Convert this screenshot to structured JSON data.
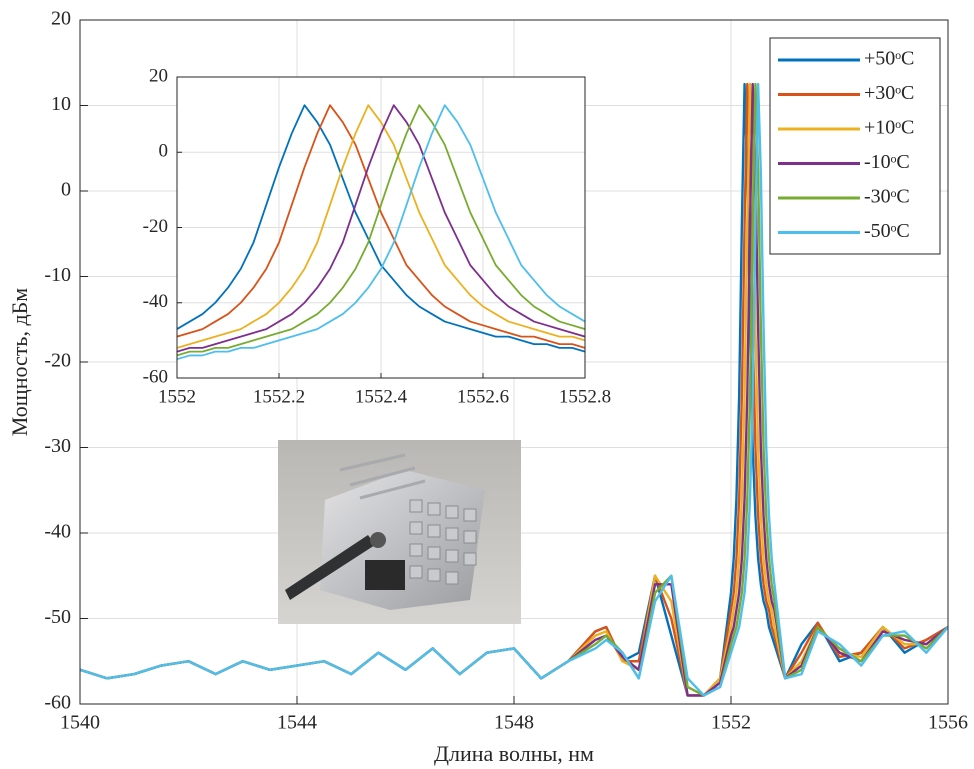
{
  "chart_data": [
    {
      "type": "line",
      "xlabel": "Длина волны, нм",
      "ylabel": "Мощность, дБм",
      "xlim": [
        1540,
        1556
      ],
      "ylim": [
        -60,
        20
      ],
      "xticks": [
        1540,
        1544,
        1548,
        1552,
        1556
      ],
      "yticks": [
        -60,
        -50,
        -40,
        -30,
        -20,
        -10,
        0,
        10,
        20
      ],
      "grid": true,
      "legend": "upper right",
      "x": [
        1540,
        1540.5,
        1541,
        1541.5,
        1542,
        1542.5,
        1543,
        1543.5,
        1544,
        1544.5,
        1545,
        1545.5,
        1546,
        1546.5,
        1547,
        1547.5,
        1548,
        1548.5,
        1549,
        1549.5,
        1549.7,
        1550,
        1550.3,
        1550.6,
        1550.9,
        1551.2,
        1551.5,
        1551.8,
        1552,
        1552.05,
        1552.1,
        1552.15,
        1552.2,
        1552.25,
        1552.3,
        1552.35,
        1552.4,
        1552.45,
        1552.5,
        1552.55,
        1552.6,
        1552.65,
        1552.7,
        1552.75,
        1552.8,
        1553,
        1553.3,
        1553.6,
        1554,
        1554.4,
        1554.8,
        1555.2,
        1555.6,
        1556
      ],
      "series": [
        {
          "name": "+50ᵒC",
          "color": "#0072BD",
          "values": [
            -56,
            -57,
            -56.5,
            -55.5,
            -55,
            -56.5,
            -55,
            -56,
            -55.5,
            -55,
            -56.5,
            -54,
            -56,
            -53.5,
            -56.5,
            -54,
            -53.5,
            -57,
            -55,
            -51.5,
            -51,
            -55,
            -54,
            -45,
            -52,
            -59,
            -59,
            -57,
            -47,
            -43,
            -36,
            -24,
            -4,
            12.5,
            2,
            -16,
            -30,
            -38,
            -43,
            -46,
            -48,
            -49,
            -51,
            -52,
            -53,
            -57,
            -53,
            -50.5,
            -55,
            -54,
            -51,
            -54,
            -52.5,
            -51
          ]
        },
        {
          "name": "+30ᵒC",
          "color": "#D95319",
          "values": [
            -56,
            -57,
            -56.5,
            -55.5,
            -55,
            -56.5,
            -55,
            -56,
            -55.5,
            -55,
            -56.5,
            -54,
            -56,
            -53.5,
            -56.5,
            -54,
            -53.5,
            -57,
            -55,
            -51.5,
            -51,
            -55,
            -55,
            -45,
            -50,
            -59,
            -59,
            -57,
            -49,
            -47,
            -43,
            -36,
            -24,
            -4,
            12.5,
            2,
            -16,
            -30,
            -38,
            -43,
            -46,
            -48,
            -49,
            -51,
            -52,
            -57,
            -54,
            -50.5,
            -54.5,
            -54,
            -51,
            -53.5,
            -52.5,
            -51
          ]
        },
        {
          "name": "+10ᵒC",
          "color": "#EDB120",
          "values": [
            -56,
            -57,
            -56.5,
            -55.5,
            -55,
            -56.5,
            -55,
            -56,
            -55.5,
            -55,
            -56.5,
            -54,
            -56,
            -53.5,
            -56.5,
            -54,
            -53.5,
            -57,
            -55,
            -52,
            -51.5,
            -55,
            -56,
            -45,
            -48,
            -59,
            -59,
            -57,
            -51,
            -49,
            -47,
            -43,
            -36,
            -24,
            -4,
            12.5,
            2,
            -16,
            -30,
            -38,
            -43,
            -46,
            -48,
            -49,
            -51,
            -57,
            -55,
            -51,
            -54,
            -54.5,
            -51,
            -53,
            -53,
            -51
          ]
        },
        {
          "name": "-10ᵒC",
          "color": "#7E2F8E",
          "values": [
            -56,
            -57,
            -56.5,
            -55.5,
            -55,
            -56.5,
            -55,
            -56,
            -55.5,
            -55,
            -56.5,
            -54,
            -56,
            -53.5,
            -56.5,
            -54,
            -53.5,
            -57,
            -55,
            -52.5,
            -52,
            -54.5,
            -56,
            -46,
            -46,
            -59,
            -59,
            -57.5,
            -52,
            -51,
            -49,
            -47,
            -43,
            -36,
            -24,
            -4,
            12.5,
            2,
            -16,
            -30,
            -38,
            -43,
            -46,
            -48,
            -49,
            -57,
            -55.5,
            -51,
            -54,
            -55,
            -51.5,
            -52.5,
            -53,
            -51
          ]
        },
        {
          "name": "-30ᵒC",
          "color": "#77AC30",
          "values": [
            -56,
            -57,
            -56.5,
            -55.5,
            -55,
            -56.5,
            -55,
            -56,
            -55.5,
            -55,
            -56.5,
            -54,
            -56,
            -53.5,
            -56.5,
            -54,
            -53.5,
            -57,
            -55,
            -53,
            -52,
            -54,
            -57,
            -47,
            -45,
            -58,
            -59,
            -58,
            -53,
            -52,
            -51,
            -49,
            -47,
            -43,
            -36,
            -24,
            -4,
            12.5,
            2,
            -16,
            -30,
            -38,
            -43,
            -46,
            -48,
            -57,
            -56,
            -51,
            -53.5,
            -55,
            -52,
            -52,
            -53.5,
            -51
          ]
        },
        {
          "name": "-50ᵒC",
          "color": "#4DBEEE",
          "values": [
            -56,
            -57,
            -56.5,
            -55.5,
            -55,
            -56.5,
            -55,
            -56,
            -55.5,
            -55,
            -56.5,
            -54,
            -56,
            -53.5,
            -56.5,
            -54,
            -53.5,
            -57,
            -55,
            -53.5,
            -52.5,
            -54,
            -57,
            -48,
            -45,
            -57,
            -59,
            -58,
            -54,
            -53,
            -52,
            -51,
            -49,
            -47,
            -43,
            -36,
            -24,
            -4,
            12.5,
            2,
            -16,
            -30,
            -38,
            -43,
            -46,
            -57,
            -56.5,
            -51.5,
            -53,
            -55.5,
            -52,
            -51.5,
            -54,
            -51
          ]
        }
      ]
    },
    {
      "type": "line",
      "xlim": [
        1552,
        1552.8
      ],
      "ylim": [
        -60,
        20
      ],
      "xticks": [
        1552,
        1552.2,
        1552.4,
        1552.6,
        1552.8
      ],
      "yticks": [
        -60,
        -40,
        -20,
        0,
        20
      ],
      "grid": true,
      "x": [
        1552,
        1552.025,
        1552.05,
        1552.075,
        1552.1,
        1552.125,
        1552.15,
        1552.175,
        1552.2,
        1552.225,
        1552.25,
        1552.275,
        1552.3,
        1552.325,
        1552.35,
        1552.375,
        1552.4,
        1552.425,
        1552.45,
        1552.475,
        1552.5,
        1552.525,
        1552.55,
        1552.575,
        1552.6,
        1552.625,
        1552.65,
        1552.675,
        1552.7,
        1552.725,
        1552.75,
        1552.775,
        1552.8
      ],
      "series": [
        {
          "color": "#0072BD",
          "values": [
            -47,
            -45,
            -43,
            -40,
            -36,
            -31,
            -24,
            -14,
            -4,
            5,
            12.5,
            8,
            2,
            -7,
            -16,
            -23,
            -30,
            -34,
            -38,
            -41,
            -43,
            -45,
            -46,
            -47,
            -48,
            -49,
            -49,
            -50,
            -51,
            -51,
            -52,
            -52,
            -53
          ]
        },
        {
          "color": "#D95319",
          "values": [
            -49,
            -48,
            -47,
            -45,
            -43,
            -40,
            -36,
            -31,
            -24,
            -14,
            -4,
            5,
            12.5,
            8,
            2,
            -7,
            -16,
            -23,
            -30,
            -34,
            -38,
            -41,
            -43,
            -45,
            -46,
            -47,
            -48,
            -49,
            -49,
            -50,
            -51,
            -51,
            -52
          ]
        },
        {
          "color": "#EDB120",
          "values": [
            -52,
            -51,
            -50,
            -49,
            -48,
            -47,
            -45,
            -43,
            -40,
            -36,
            -31,
            -24,
            -14,
            -4,
            5,
            12.5,
            8,
            2,
            -7,
            -16,
            -23,
            -30,
            -34,
            -38,
            -41,
            -43,
            -45,
            -46,
            -47,
            -48,
            -49,
            -49,
            -50
          ]
        },
        {
          "color": "#7E2F8E",
          "values": [
            -53,
            -52,
            -52,
            -51,
            -50,
            -49,
            -48,
            -47,
            -45,
            -43,
            -40,
            -36,
            -31,
            -24,
            -14,
            -4,
            5,
            12.5,
            8,
            2,
            -7,
            -16,
            -23,
            -30,
            -34,
            -38,
            -41,
            -43,
            -45,
            -46,
            -47,
            -48,
            -49
          ]
        },
        {
          "color": "#77AC30",
          "values": [
            -54,
            -53,
            -53,
            -52,
            -52,
            -51,
            -50,
            -49,
            -48,
            -47,
            -45,
            -43,
            -40,
            -36,
            -31,
            -24,
            -14,
            -4,
            5,
            12.5,
            8,
            2,
            -7,
            -16,
            -23,
            -30,
            -34,
            -38,
            -41,
            -43,
            -45,
            -46,
            -47
          ]
        },
        {
          "color": "#4DBEEE",
          "values": [
            -55,
            -54,
            -54,
            -53,
            -53,
            -52,
            -52,
            -51,
            -50,
            -49,
            -48,
            -47,
            -45,
            -43,
            -40,
            -36,
            -31,
            -24,
            -14,
            -4,
            5,
            12.5,
            8,
            2,
            -7,
            -16,
            -23,
            -30,
            -34,
            -38,
            -41,
            -43,
            -45
          ]
        }
      ]
    }
  ]
}
